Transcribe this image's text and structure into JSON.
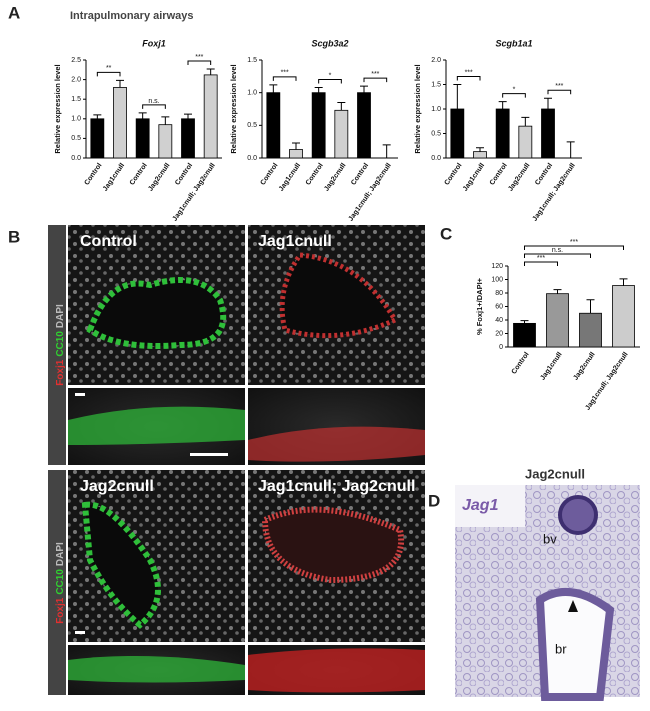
{
  "figure": {
    "panel_a": "A",
    "panel_a_title": "Intrapulmonary airways",
    "panel_b": "B",
    "panel_c": "C",
    "panel_d": "D",
    "b_labels": [
      "Control",
      "Jag1cnull",
      "Jag2cnull",
      "Jag1cnull; Jag2cnull"
    ],
    "stain_labels": [
      "Foxj1",
      "CC10",
      "DAPI"
    ],
    "stain_colors": [
      "#e03030",
      "#30d030",
      "#bbbbbb"
    ],
    "d_title": "Jag2cnull",
    "d_gene": "Jag1",
    "d_labels": [
      "bv",
      "br"
    ]
  },
  "chart_data": [
    {
      "type": "bar",
      "title": "Foxj1",
      "ylabel": "Relative expression level",
      "categories": [
        "Control",
        "Jag1cnull",
        "Control",
        "Jag2cnull",
        "Control",
        "Jag1cnull; Jag2cnull"
      ],
      "values": [
        1.0,
        1.8,
        1.0,
        0.85,
        1.0,
        2.12
      ],
      "errors": [
        0.1,
        0.18,
        0.15,
        0.2,
        0.12,
        0.15
      ],
      "colors": [
        "#000000",
        "#d0d0d0",
        "#000000",
        "#d0d0d0",
        "#000000",
        "#d0d0d0"
      ],
      "ylim": [
        0,
        2.5
      ],
      "yticks": [
        {
          "value": 0,
          "label": "0.0"
        },
        0.5,
        {
          "value": 1,
          "label": "1.0"
        },
        1.5,
        {
          "value": 2,
          "label": "2.0"
        },
        2.5
      ],
      "significance": [
        "**",
        "n.s.",
        "***"
      ]
    },
    {
      "type": "bar",
      "title": "Scgb3a2",
      "ylabel": "Relative expression level",
      "categories": [
        "Control",
        "Jag1cnull",
        "Control",
        "Jag2cnull",
        "Control",
        "Jag1cnull; Jag2cnull"
      ],
      "values": [
        1.0,
        0.13,
        1.0,
        0.73,
        1.0,
        0.0
      ],
      "errors": [
        0.12,
        0.1,
        0.08,
        0.12,
        0.1,
        0.2
      ],
      "colors": [
        "#000000",
        "#d0d0d0",
        "#000000",
        "#d0d0d0",
        "#000000",
        "#d0d0d0"
      ],
      "ylim": [
        0,
        1.5
      ],
      "yticks": [
        {
          "value": 0,
          "label": "0.0"
        },
        0.5,
        {
          "value": 1,
          "label": "1.0"
        },
        1.5
      ],
      "significance": [
        "***",
        "*",
        "***"
      ]
    },
    {
      "type": "bar",
      "title": "Scgb1a1",
      "ylabel": "Relative expression level",
      "categories": [
        "Control",
        "Jag1cnull",
        "Control",
        "Jag2cnull",
        "Control",
        "Jag1cnull; Jag2cnull"
      ],
      "values": [
        1.0,
        0.13,
        1.0,
        0.65,
        1.0,
        0.0
      ],
      "errors": [
        0.5,
        0.08,
        0.15,
        0.18,
        0.22,
        0.33
      ],
      "colors": [
        "#000000",
        "#d0d0d0",
        "#000000",
        "#d0d0d0",
        "#000000",
        "#d0d0d0"
      ],
      "ylim": [
        0,
        2.0
      ],
      "yticks": [
        {
          "value": 0,
          "label": "0.0"
        },
        0.5,
        {
          "value": 1,
          "label": "1.0"
        },
        1.5,
        {
          "value": 2,
          "label": "2.0"
        }
      ],
      "significance": [
        "***",
        "*",
        "***"
      ]
    },
    {
      "type": "bar",
      "ylabel": "% Foxj1+/DAPI+",
      "categories": [
        "Control",
        "Jag1cnull",
        "Jag2cnull",
        "Jag1cnull; Jag2cnull"
      ],
      "values": [
        35,
        79,
        50,
        91
      ],
      "errors": [
        4,
        6,
        20,
        10
      ],
      "colors": [
        "#000000",
        "#999999",
        "#777777",
        "#cccccc"
      ],
      "ylim": [
        0,
        120
      ],
      "yticks": [
        0,
        20,
        40,
        60,
        80,
        100,
        120
      ],
      "significance": [
        "***",
        "n.s.",
        "***"
      ]
    }
  ]
}
